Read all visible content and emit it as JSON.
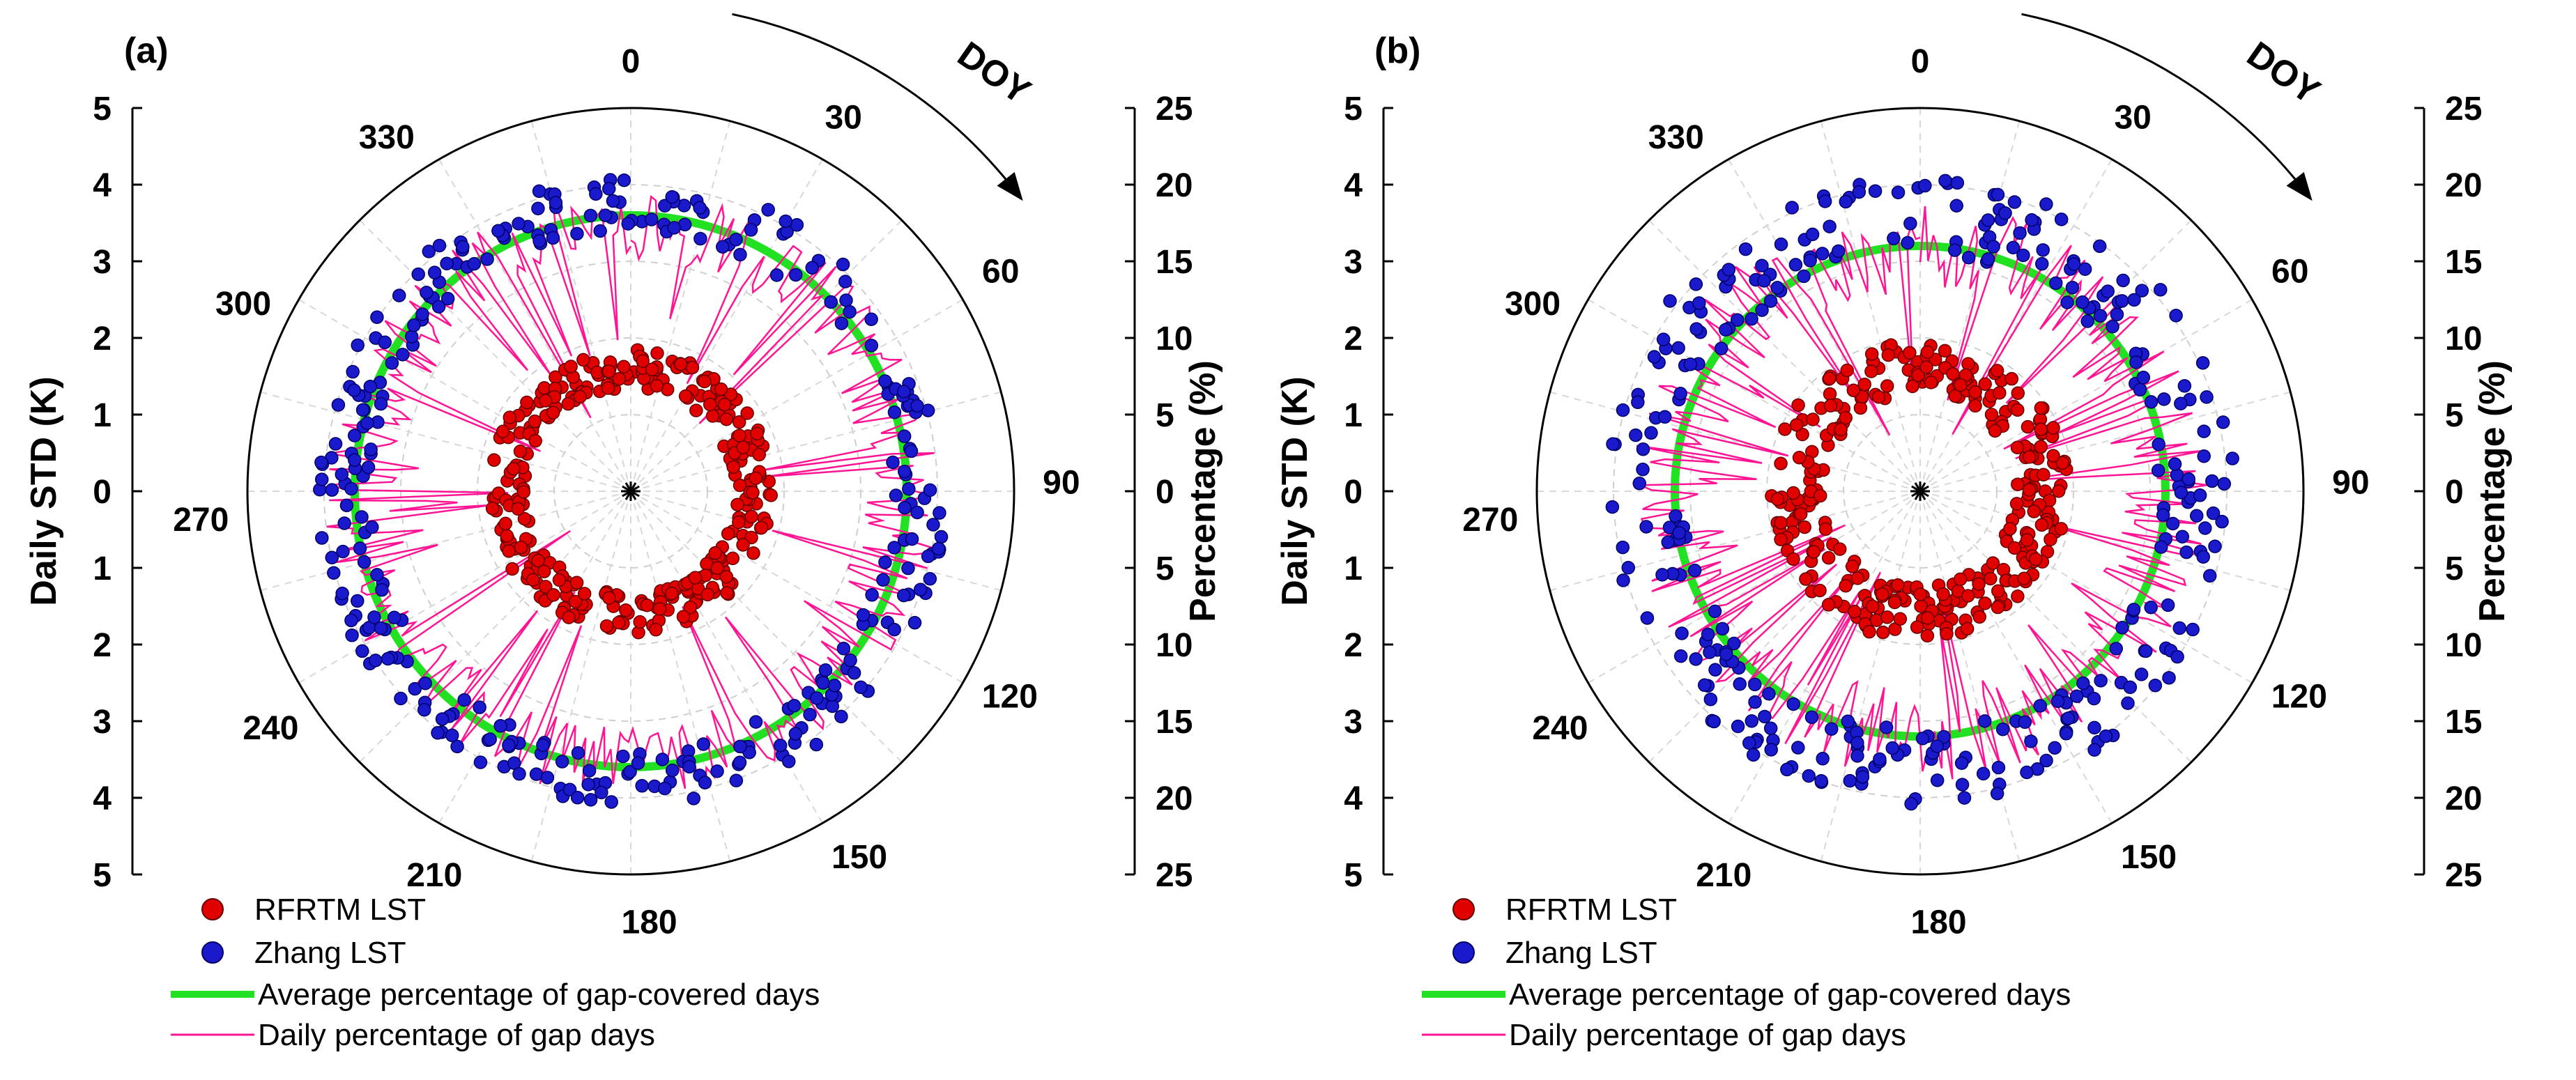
{
  "chart_data": [
    {
      "type": "polar-scatter",
      "panel_label": "(a)",
      "angular_axis": {
        "label": "DOY",
        "ticks": [
          "0",
          "30",
          "60",
          "90",
          "120",
          "150",
          "180",
          "210",
          "240",
          "270",
          "300",
          "330"
        ],
        "range": [
          0,
          365
        ]
      },
      "left_axis": {
        "label": "Daily STD  (K)",
        "ticks_top": [
          "5",
          "4",
          "3",
          "2",
          "1",
          "0"
        ],
        "ticks_bottom": [
          "1",
          "2",
          "3",
          "4",
          "5"
        ],
        "range": [
          0,
          5
        ]
      },
      "right_axis": {
        "label": "Percentage (%)",
        "ticks_top": [
          "25",
          "20",
          "15",
          "10",
          "5",
          "0"
        ],
        "ticks_bottom": [
          "5",
          "10",
          "15",
          "20",
          "25"
        ],
        "range": [
          0,
          25
        ]
      },
      "series": [
        {
          "name": "RFRTM LST",
          "kind": "scatter",
          "color": "#e00000",
          "radius_mean": 1.6,
          "radius_spread": 0.25,
          "count": 320
        },
        {
          "name": "Zhang LST",
          "kind": "scatter",
          "color": "#1a1acc",
          "radius_mean": 3.75,
          "radius_spread": 0.35,
          "count": 320
        },
        {
          "name": "Average percentage of gap-covered days",
          "kind": "circle",
          "color": "#22e022",
          "value": 18
        },
        {
          "name": "Daily percentage of gap days",
          "kind": "line",
          "color": "#ff1493",
          "mean": 17.5,
          "spread": 2.5
        }
      ]
    },
    {
      "type": "polar-scatter",
      "panel_label": "(b)",
      "angular_axis": {
        "label": "DOY",
        "ticks": [
          "0",
          "30",
          "60",
          "90",
          "120",
          "150",
          "180",
          "210",
          "240",
          "270",
          "300",
          "330"
        ],
        "range": [
          0,
          365
        ]
      },
      "left_axis": {
        "label": "Daily STD  (K)",
        "ticks_top": [
          "5",
          "4",
          "3",
          "2",
          "1",
          "0"
        ],
        "ticks_bottom": [
          "1",
          "2",
          "3",
          "4",
          "5"
        ],
        "range": [
          0,
          5
        ]
      },
      "right_axis": {
        "label": "Percentage (%)",
        "ticks_top": [
          "25",
          "20",
          "15",
          "10",
          "5",
          "0"
        ],
        "ticks_bottom": [
          "5",
          "10",
          "15",
          "20",
          "25"
        ],
        "range": [
          0,
          25
        ]
      },
      "series": [
        {
          "name": "RFRTM LST",
          "kind": "scatter",
          "color": "#e00000",
          "radius_mean": 1.6,
          "radius_spread": 0.35,
          "count": 320
        },
        {
          "name": "Zhang LST",
          "kind": "scatter",
          "color": "#1a1acc",
          "radius_mean": 3.6,
          "radius_spread": 0.5,
          "count": 320
        },
        {
          "name": "Average percentage of gap-covered days",
          "kind": "circle",
          "color": "#22e022",
          "value": 16
        },
        {
          "name": "Daily percentage of gap days",
          "kind": "line",
          "color": "#ff1493",
          "mean": 16,
          "spread": 3
        }
      ]
    }
  ]
}
